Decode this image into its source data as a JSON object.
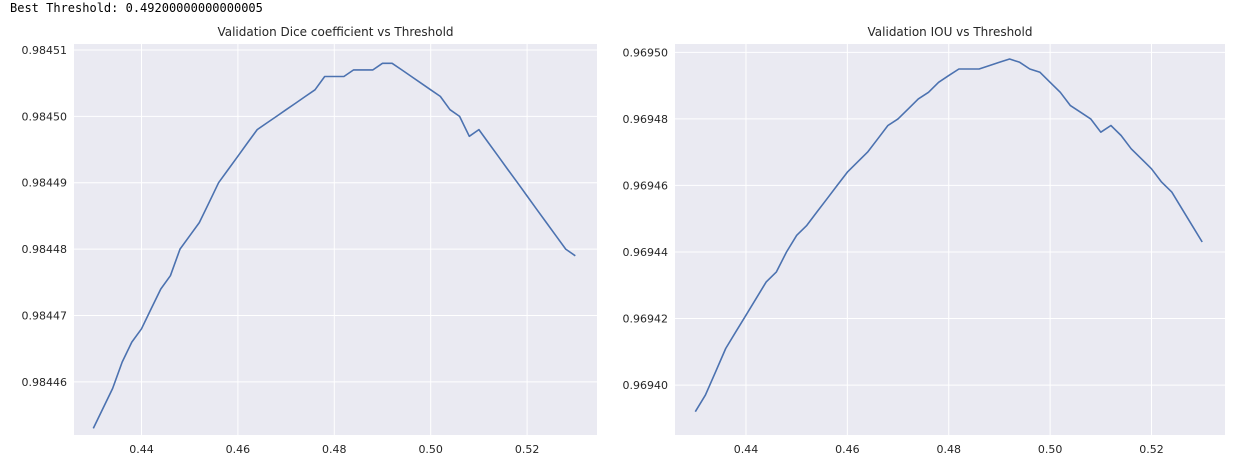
{
  "output": {
    "text": "Best Threshold: 0.49200000000000005"
  },
  "chart_data": [
    {
      "type": "line",
      "title": "Validation Dice coefficient vs Threshold",
      "xlabel": "",
      "ylabel": "",
      "xlim": [
        0.426,
        0.5345
      ],
      "ylim": [
        0.984452,
        0.9845109
      ],
      "xticks": [
        0.44,
        0.46,
        0.48,
        0.5,
        0.52
      ],
      "xtick_labels": [
        "0.44",
        "0.46",
        "0.48",
        "0.50",
        "0.52"
      ],
      "yticks": [
        0.98446,
        0.98447,
        0.98448,
        0.98449,
        0.9845,
        0.98451
      ],
      "ytick_labels": [
        "0.98446",
        "0.98447",
        "0.98448",
        "0.98449",
        "0.98450",
        "0.98451"
      ],
      "grid": true,
      "line_color": "#4c72b0",
      "background": "#eaeaf2",
      "x": [
        0.43,
        0.434,
        0.436,
        0.438,
        0.44,
        0.442,
        0.444,
        0.446,
        0.448,
        0.45,
        0.452,
        0.454,
        0.456,
        0.458,
        0.46,
        0.462,
        0.464,
        0.466,
        0.468,
        0.47,
        0.472,
        0.474,
        0.476,
        0.478,
        0.48,
        0.482,
        0.484,
        0.486,
        0.488,
        0.49,
        0.492,
        0.494,
        0.496,
        0.498,
        0.5,
        0.502,
        0.504,
        0.506,
        0.508,
        0.51,
        0.512,
        0.514,
        0.516,
        0.518,
        0.52,
        0.522,
        0.524,
        0.526,
        0.528,
        0.53
      ],
      "y": [
        0.984453,
        0.984459,
        0.984463,
        0.984466,
        0.984468,
        0.984471,
        0.984474,
        0.984476,
        0.98448,
        0.984482,
        0.984484,
        0.984487,
        0.98449,
        0.984492,
        0.984494,
        0.984496,
        0.984498,
        0.984499,
        0.9845,
        0.984501,
        0.984502,
        0.984503,
        0.984504,
        0.984506,
        0.984506,
        0.984506,
        0.984507,
        0.984507,
        0.984507,
        0.984508,
        0.984508,
        0.984507,
        0.984506,
        0.984505,
        0.984504,
        0.984503,
        0.984501,
        0.9845,
        0.984497,
        0.984498,
        0.984496,
        0.984494,
        0.984492,
        0.98449,
        0.984488,
        0.984486,
        0.984484,
        0.984482,
        0.98448,
        0.984479
      ]
    },
    {
      "type": "line",
      "title": "Validation IOU vs Threshold",
      "xlabel": "",
      "ylabel": "",
      "xlim": [
        0.426,
        0.5345
      ],
      "ylim": [
        0.969385,
        0.9695025
      ],
      "xticks": [
        0.44,
        0.46,
        0.48,
        0.5,
        0.52
      ],
      "xtick_labels": [
        "0.44",
        "0.46",
        "0.48",
        "0.50",
        "0.52"
      ],
      "yticks": [
        0.9694,
        0.96942,
        0.96944,
        0.96946,
        0.96948,
        0.9695
      ],
      "ytick_labels": [
        "0.96940",
        "0.96942",
        "0.96944",
        "0.96946",
        "0.96948",
        "0.96950"
      ],
      "grid": true,
      "line_color": "#4c72b0",
      "background": "#eaeaf2",
      "x": [
        0.43,
        0.432,
        0.434,
        0.436,
        0.438,
        0.44,
        0.442,
        0.444,
        0.446,
        0.448,
        0.45,
        0.452,
        0.454,
        0.456,
        0.458,
        0.46,
        0.462,
        0.464,
        0.466,
        0.468,
        0.47,
        0.472,
        0.474,
        0.476,
        0.478,
        0.48,
        0.482,
        0.484,
        0.486,
        0.488,
        0.49,
        0.492,
        0.494,
        0.496,
        0.498,
        0.5,
        0.502,
        0.504,
        0.506,
        0.508,
        0.51,
        0.512,
        0.514,
        0.516,
        0.518,
        0.52,
        0.522,
        0.524,
        0.526,
        0.528,
        0.53
      ],
      "y": [
        0.969392,
        0.969397,
        0.969404,
        0.969411,
        0.969416,
        0.969421,
        0.969426,
        0.969431,
        0.969434,
        0.96944,
        0.969445,
        0.969448,
        0.969452,
        0.969456,
        0.96946,
        0.969464,
        0.969467,
        0.96947,
        0.969474,
        0.969478,
        0.96948,
        0.969483,
        0.969486,
        0.969488,
        0.969491,
        0.969493,
        0.969495,
        0.969495,
        0.969495,
        0.969496,
        0.969497,
        0.969498,
        0.969497,
        0.969495,
        0.969494,
        0.969491,
        0.969488,
        0.969484,
        0.969482,
        0.96948,
        0.969476,
        0.969478,
        0.969475,
        0.969471,
        0.969468,
        0.969465,
        0.969461,
        0.969458,
        0.969453,
        0.969448,
        0.969443
      ]
    }
  ]
}
